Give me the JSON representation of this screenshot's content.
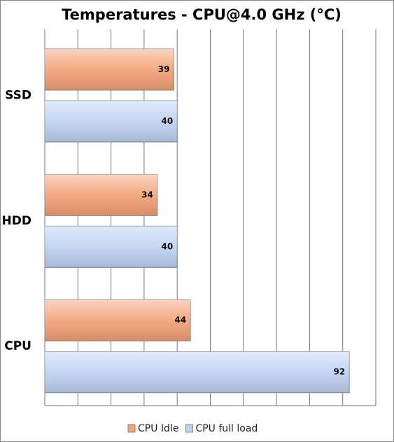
{
  "chart_data": {
    "type": "hbar",
    "title": "Temperatures - CPU@4.0 GHz (°C)",
    "categories": [
      "SSD",
      "HDD",
      "CPU"
    ],
    "series": [
      {
        "name": "CPU Idle",
        "color": "#f2a074",
        "values": [
          39,
          34,
          44
        ]
      },
      {
        "name": "CPU full load",
        "color": "#bcd2f3",
        "values": [
          40,
          40,
          92
        ]
      }
    ],
    "xlim": [
      0,
      100
    ],
    "xticks": [
      0,
      10,
      20,
      30,
      40,
      50,
      60,
      70,
      80,
      90,
      100
    ],
    "grid": true,
    "legend": "bottom"
  }
}
